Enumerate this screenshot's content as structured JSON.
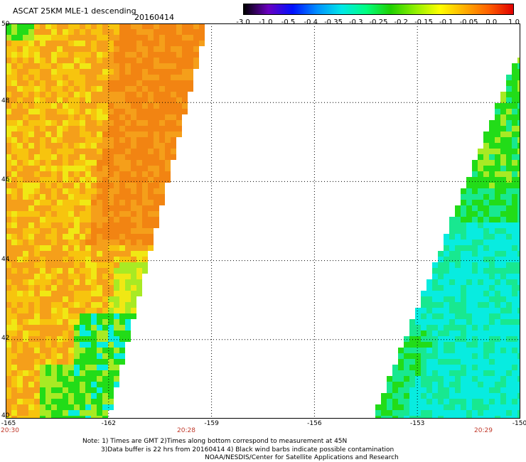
{
  "header": {
    "title": "ASCAT 25KM MLE-1 descending",
    "date": "20160414"
  },
  "colorbar": {
    "labels": [
      "-3.0",
      "-1.0",
      "-0.5",
      "-0.4",
      "-0.35",
      "-0.3",
      "-0.25",
      "-0.2",
      "-0.15",
      "-0.1",
      "-0.05",
      "0.0",
      "1.0"
    ],
    "colors": [
      "#000000",
      "#6a00c0",
      "#0010ff",
      "#0090ff",
      "#00e8e8",
      "#00ff80",
      "#20d000",
      "#90f000",
      "#ffff00",
      "#ffb000",
      "#ff6000",
      "#e00000"
    ]
  },
  "map": {
    "lat_labels": [
      "50",
      "48",
      "46",
      "44",
      "42",
      "40"
    ],
    "lon_labels": [
      "-165",
      "-162",
      "-159",
      "-156",
      "-153",
      "-150"
    ],
    "time_labels": [
      "20:30",
      "20:28",
      "20:29"
    ],
    "colors": {
      "orange": "#f59f1a",
      "dark_orange": "#f28412",
      "yellow_orange": "#f7c40e",
      "yellow": "#f0e814",
      "light_green": "#a8ea24",
      "green": "#22dc18",
      "aqua": "#18e890",
      "cyan": "#08ece0"
    }
  },
  "notes": {
    "line1": "Note: 1) Times are GMT 2)Times along bottom correspond to measurement at 45N",
    "line2": "3)Data buffer is 22 hrs from 20160414 4) Black wind barbs indicate possible contamination",
    "line3": "NOAA/NESDIS/Center for Satellite Applications and Research"
  }
}
